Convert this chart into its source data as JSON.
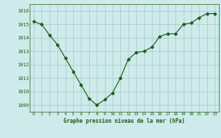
{
  "x": [
    0,
    1,
    2,
    3,
    4,
    5,
    6,
    7,
    8,
    9,
    10,
    11,
    12,
    13,
    14,
    15,
    16,
    17,
    18,
    19,
    20,
    21,
    22,
    23
  ],
  "y": [
    1015.2,
    1015.0,
    1014.2,
    1013.5,
    1012.5,
    1011.5,
    1010.5,
    1009.5,
    1009.0,
    1009.4,
    1009.9,
    1011.0,
    1012.4,
    1012.9,
    1013.0,
    1013.3,
    1014.1,
    1014.3,
    1014.3,
    1015.0,
    1015.1,
    1015.5,
    1015.8,
    1015.8
  ],
  "line_color": "#1a5c1a",
  "marker": "D",
  "marker_size": 2.5,
  "bg_color": "#ceeaea",
  "grid_color": "#aacccc",
  "xlabel": "Graphe pression niveau de la mer (hPa)",
  "xlabel_color": "#1a5c1a",
  "tick_color": "#1a5c1a",
  "ylim": [
    1008.5,
    1016.5
  ],
  "yticks": [
    1009,
    1010,
    1011,
    1012,
    1013,
    1014,
    1015,
    1016
  ],
  "xticks": [
    0,
    1,
    2,
    3,
    4,
    5,
    6,
    7,
    8,
    9,
    10,
    11,
    12,
    13,
    14,
    15,
    16,
    17,
    18,
    19,
    20,
    21,
    22,
    23
  ],
  "xlim": [
    -0.5,
    23.5
  ]
}
